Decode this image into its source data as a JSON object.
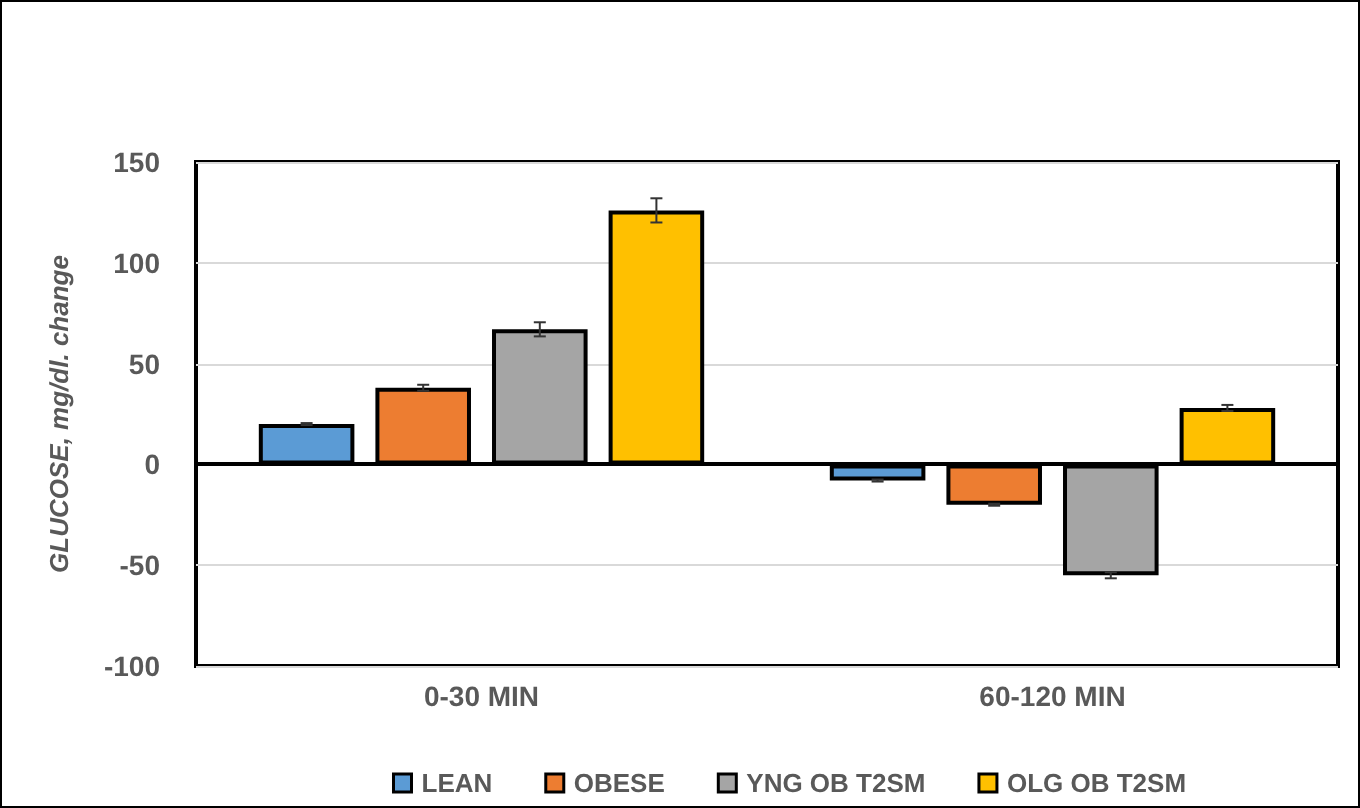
{
  "chart_data": {
    "type": "bar",
    "ylabel": "GLUCOSE, mg/dl. change",
    "categories": [
      "0-30 MIN",
      "60-120 MIN"
    ],
    "series": [
      {
        "name": "LEAN",
        "color": "#5b9bd5",
        "values": [
          20,
          -8
        ],
        "errors": [
          0.5,
          0.5
        ]
      },
      {
        "name": "OBESE",
        "color": "#ed7d31",
        "values": [
          38,
          -20
        ],
        "errors": [
          1.5,
          0.5
        ]
      },
      {
        "name": "YNG OB T2SM",
        "color": "#a5a5a5",
        "values": [
          67,
          -55
        ],
        "errors": [
          3.5,
          1.5
        ]
      },
      {
        "name": "OLG OB T2SM",
        "color": "#ffc000",
        "values": [
          126,
          28
        ],
        "errors": [
          6,
          1.5
        ]
      }
    ],
    "ylim": [
      -100,
      150
    ],
    "yticks": [
      -100,
      -50,
      0,
      50,
      100,
      150
    ],
    "grid": "y",
    "legend": "bottom"
  }
}
